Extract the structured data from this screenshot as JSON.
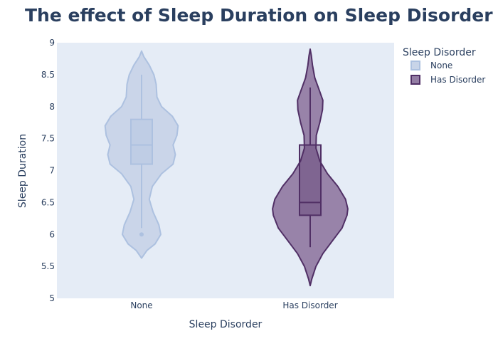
{
  "chart_data": {
    "type": "violin",
    "title": "The effect of Sleep Duration on Sleep Disorder ..",
    "xlabel": "Sleep Disorder",
    "ylabel": "Sleep Duration",
    "categories": [
      "None",
      "Has Disorder"
    ],
    "ylim": [
      5,
      9
    ],
    "yticks": [
      "5",
      "5.5",
      "6",
      "6.5",
      "7",
      "7.5",
      "8",
      "8.5",
      "9"
    ],
    "grid": false,
    "legend": {
      "title": "Sleep Disorder",
      "placement": "top-right",
      "entries": [
        "None",
        "Has Disorder"
      ]
    },
    "series": [
      {
        "name": "None",
        "fill_color": "#c8d4e8",
        "line_color": "#adc1e0",
        "box": {
          "q1": 7.1,
          "median": 7.4,
          "q3": 7.8,
          "whisker_low": 6.1,
          "whisker_high": 8.5
        },
        "outliers": [
          6.0
        ],
        "density_profile": [
          [
            5.63,
            0.0
          ],
          [
            5.75,
            0.14
          ],
          [
            5.85,
            0.35
          ],
          [
            6.0,
            0.5
          ],
          [
            6.15,
            0.45
          ],
          [
            6.35,
            0.3
          ],
          [
            6.55,
            0.2
          ],
          [
            6.75,
            0.28
          ],
          [
            6.95,
            0.52
          ],
          [
            7.1,
            0.82
          ],
          [
            7.25,
            0.88
          ],
          [
            7.4,
            0.82
          ],
          [
            7.55,
            0.92
          ],
          [
            7.7,
            0.95
          ],
          [
            7.85,
            0.8
          ],
          [
            8.0,
            0.52
          ],
          [
            8.15,
            0.4
          ],
          [
            8.35,
            0.38
          ],
          [
            8.5,
            0.32
          ],
          [
            8.65,
            0.2
          ],
          [
            8.78,
            0.06
          ],
          [
            8.87,
            0.0
          ]
        ]
      },
      {
        "name": "Has Disorder",
        "fill_color": "#937da4",
        "line_color": "#502f65",
        "box": {
          "q1": 6.3,
          "median": 6.5,
          "q3": 7.4,
          "whisker_low": 5.8,
          "whisker_high": 8.3
        },
        "outliers": [],
        "density_profile": [
          [
            5.2,
            0.0
          ],
          [
            5.3,
            0.04
          ],
          [
            5.5,
            0.15
          ],
          [
            5.7,
            0.33
          ],
          [
            5.9,
            0.58
          ],
          [
            6.1,
            0.83
          ],
          [
            6.3,
            0.96
          ],
          [
            6.4,
            0.98
          ],
          [
            6.55,
            0.92
          ],
          [
            6.75,
            0.72
          ],
          [
            6.95,
            0.45
          ],
          [
            7.15,
            0.25
          ],
          [
            7.35,
            0.15
          ],
          [
            7.55,
            0.16
          ],
          [
            7.75,
            0.25
          ],
          [
            7.95,
            0.32
          ],
          [
            8.1,
            0.33
          ],
          [
            8.25,
            0.24
          ],
          [
            8.45,
            0.12
          ],
          [
            8.65,
            0.06
          ],
          [
            8.8,
            0.03
          ],
          [
            8.9,
            0.0
          ]
        ]
      }
    ]
  }
}
